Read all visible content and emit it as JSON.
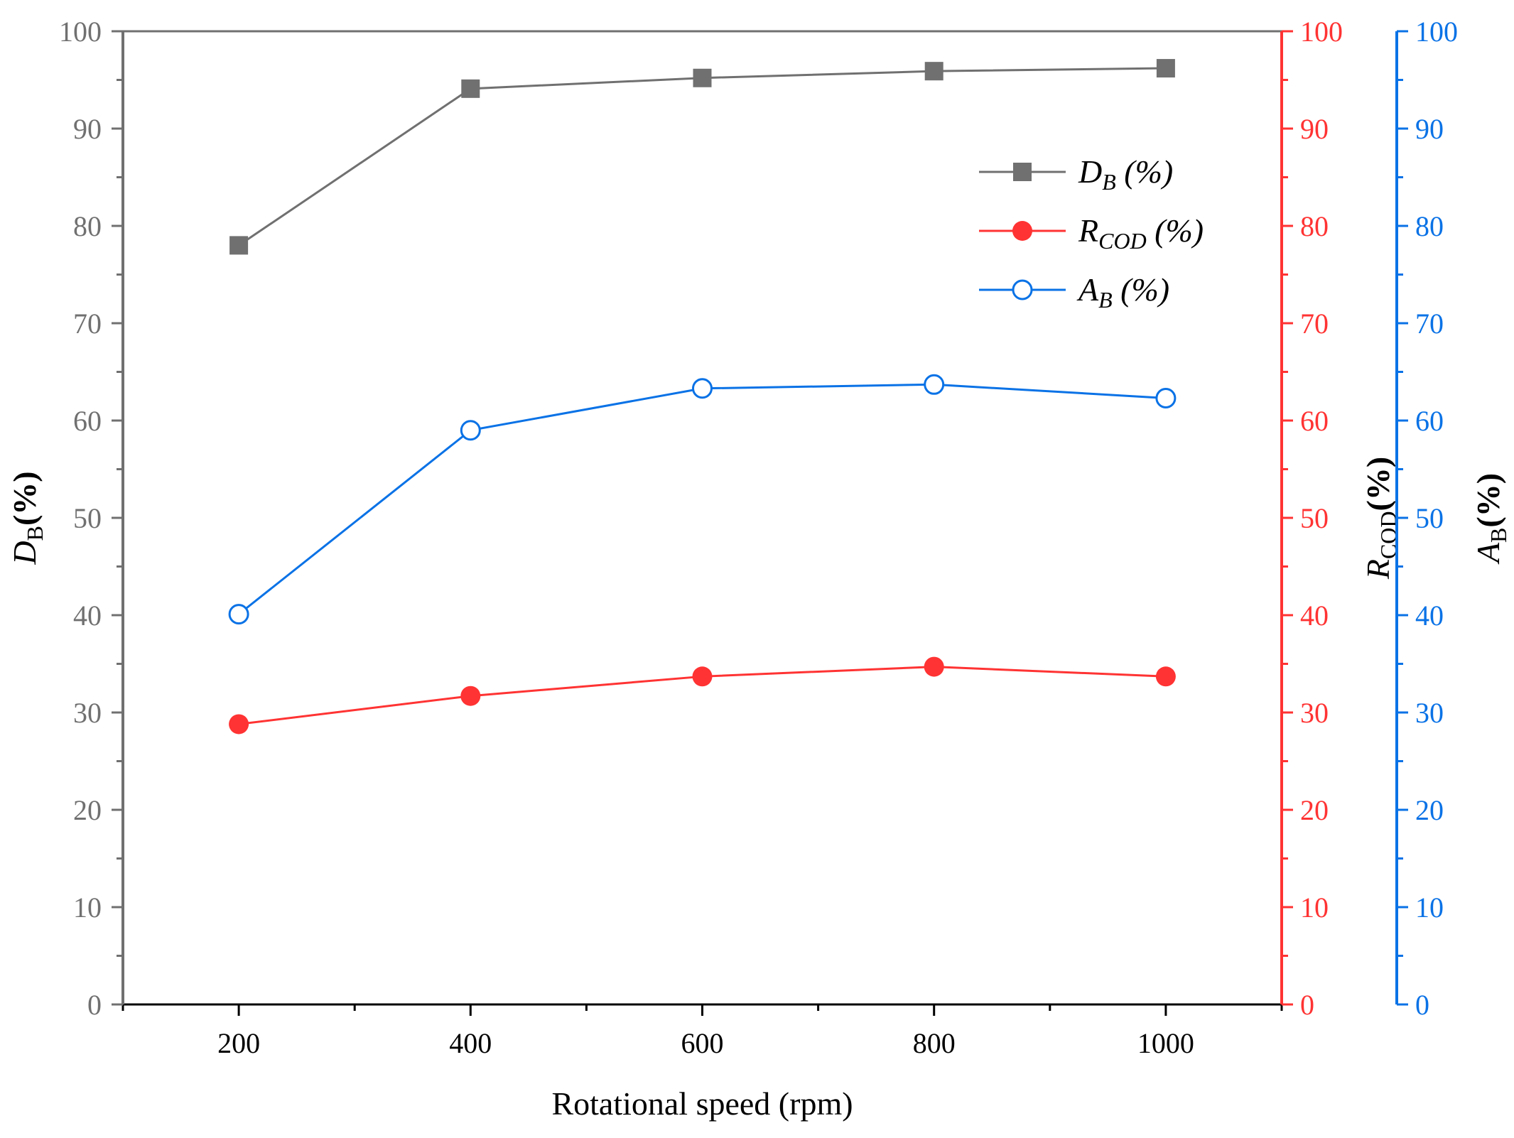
{
  "chart_data": {
    "type": "line",
    "x": [
      200,
      400,
      600,
      800,
      1000
    ],
    "xlim": [
      100,
      1100
    ],
    "xticks": [
      "200",
      "400",
      "600",
      "800",
      "1000"
    ],
    "xlabel": "Rotational speed (rpm)",
    "axes": [
      {
        "id": "left",
        "label_main": "D",
        "label_sub": "B",
        "label_rest": "(%)",
        "color": "#707070",
        "ylim": [
          0,
          100
        ],
        "ticks": [
          "0",
          "10",
          "20",
          "30",
          "40",
          "50",
          "60",
          "70",
          "80",
          "90",
          "100"
        ]
      },
      {
        "id": "right1",
        "label_main": "R",
        "label_sub": "COD",
        "label_rest": "(%)",
        "color": "#ff3333",
        "ylim": [
          0,
          100
        ],
        "ticks": [
          "0",
          "10",
          "20",
          "30",
          "40",
          "50",
          "60",
          "70",
          "80",
          "90",
          "100"
        ]
      },
      {
        "id": "right2",
        "label_main": "A",
        "label_sub": "B",
        "label_rest": "(%)",
        "color": "#0a72e6",
        "ylim": [
          0,
          100
        ],
        "ticks": [
          "0",
          "10",
          "20",
          "30",
          "40",
          "50",
          "60",
          "70",
          "80",
          "90",
          "100"
        ]
      }
    ],
    "series": [
      {
        "name_main": "D",
        "name_sub": "B",
        "name_rest": " (%)",
        "axis": "left",
        "color": "#707070",
        "marker": "square",
        "values": [
          78.0,
          94.1,
          95.2,
          95.9,
          96.2
        ]
      },
      {
        "name_main": "R",
        "name_sub": "COD",
        "name_rest": " (%)",
        "axis": "right1",
        "color": "#ff3333",
        "marker": "circle-filled",
        "values": [
          28.8,
          31.7,
          33.7,
          34.7,
          33.7
        ]
      },
      {
        "name_main": "A",
        "name_sub": "B",
        "name_rest": " (%)",
        "axis": "right2",
        "color": "#0a72e6",
        "marker": "circle-open",
        "values": [
          40.1,
          59.0,
          63.3,
          63.7,
          62.3
        ]
      }
    ],
    "legend_position": "top-right",
    "grid": false
  }
}
